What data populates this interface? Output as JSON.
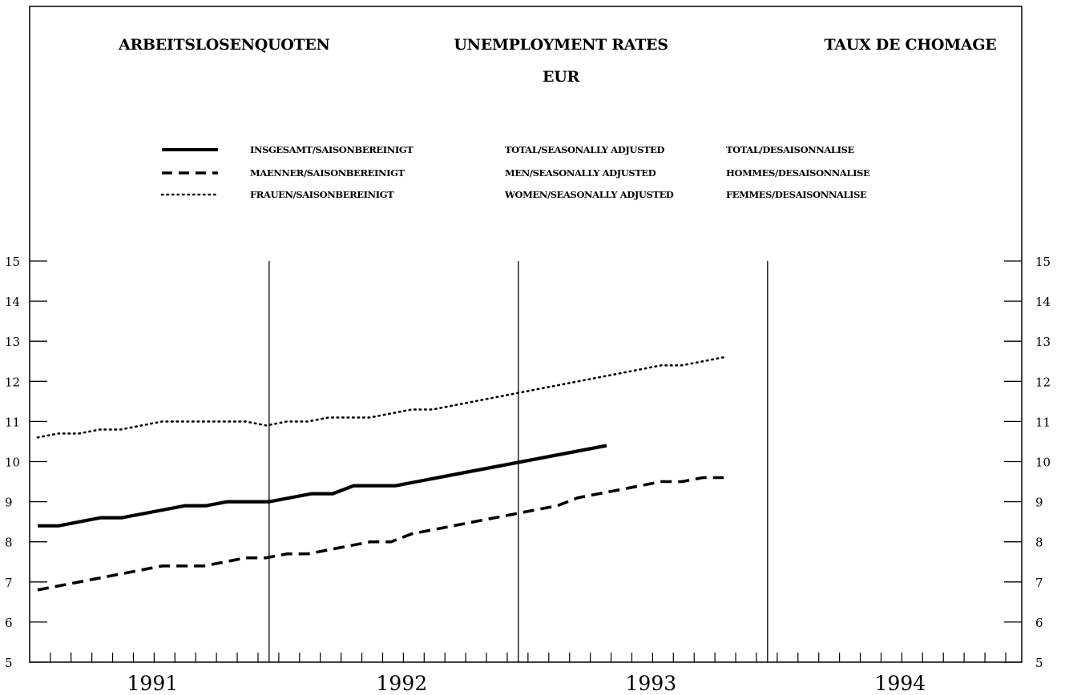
{
  "titles": {
    "left": "ARBEITSLOSENQUOTEN",
    "center": "UNEMPLOYMENT RATES",
    "center_sub": "EUR",
    "right": "TAUX DE CHOMAGE"
  },
  "legend": [
    {
      "style": "solid",
      "de": "INSGESAMT/SAISONBEREINIGT",
      "en": "TOTAL/SEASONALLY ADJUSTED",
      "fr": "TOTAL/DESAISONNALISE"
    },
    {
      "style": "dashed",
      "de": "MAENNER/SAISONBEREINIGT",
      "en": "MEN/SEASONALLY ADJUSTED",
      "fr": "HOMMES/DESAISONNALISE"
    },
    {
      "style": "dotted",
      "de": "FRAUEN/SAISONBEREINIGT",
      "en": "WOMEN/SEASONALLY ADJUSTED",
      "fr": "FEMMES/DESAISONNALISE"
    }
  ],
  "chart_data": {
    "type": "line",
    "title": "UNEMPLOYMENT RATES",
    "subtitle": "EUR",
    "ylim": [
      5,
      15
    ],
    "yticks": [
      5,
      6,
      7,
      8,
      9,
      10,
      11,
      12,
      13,
      14,
      15
    ],
    "years": [
      "1991",
      "1992",
      "1993",
      "1994"
    ],
    "months_per_year": 12,
    "grid": false,
    "legend_position": "top",
    "series": [
      {
        "name": "INSGESAMT/SAISONBEREINIGT",
        "style": "solid",
        "start_month": 1,
        "values": [
          8.4,
          8.4,
          8.5,
          8.6,
          8.6,
          8.7,
          8.8,
          8.9,
          8.9,
          9.0,
          9.0,
          9.0,
          9.1,
          9.2,
          9.2,
          9.4,
          9.4,
          9.4,
          9.5,
          9.6,
          9.7,
          9.8,
          9.9,
          10.0,
          10.1,
          10.2,
          10.3,
          10.4
        ]
      },
      {
        "name": "MAENNER/SAISONBEREINIGT",
        "style": "dashed",
        "start_month": 1,
        "values": [
          6.8,
          6.9,
          7.0,
          7.1,
          7.2,
          7.3,
          7.4,
          7.4,
          7.4,
          7.5,
          7.6,
          7.6,
          7.7,
          7.7,
          7.8,
          7.9,
          8.0,
          8.0,
          8.2,
          8.3,
          8.4,
          8.5,
          8.6,
          8.7,
          8.8,
          8.9,
          9.1,
          9.2,
          9.3,
          9.4,
          9.5,
          9.5,
          9.6,
          9.6
        ]
      },
      {
        "name": "FRAUEN/SAISONBEREINIGT",
        "style": "dotted",
        "start_month": 1,
        "values": [
          10.6,
          10.7,
          10.7,
          10.8,
          10.8,
          10.9,
          11.0,
          11.0,
          11.0,
          11.0,
          11.0,
          10.9,
          11.0,
          11.0,
          11.1,
          11.1,
          11.1,
          11.2,
          11.3,
          11.3,
          11.4,
          11.5,
          11.6,
          11.7,
          11.8,
          11.9,
          12.0,
          12.1,
          12.2,
          12.3,
          12.4,
          12.4,
          12.5,
          12.6
        ]
      }
    ]
  }
}
